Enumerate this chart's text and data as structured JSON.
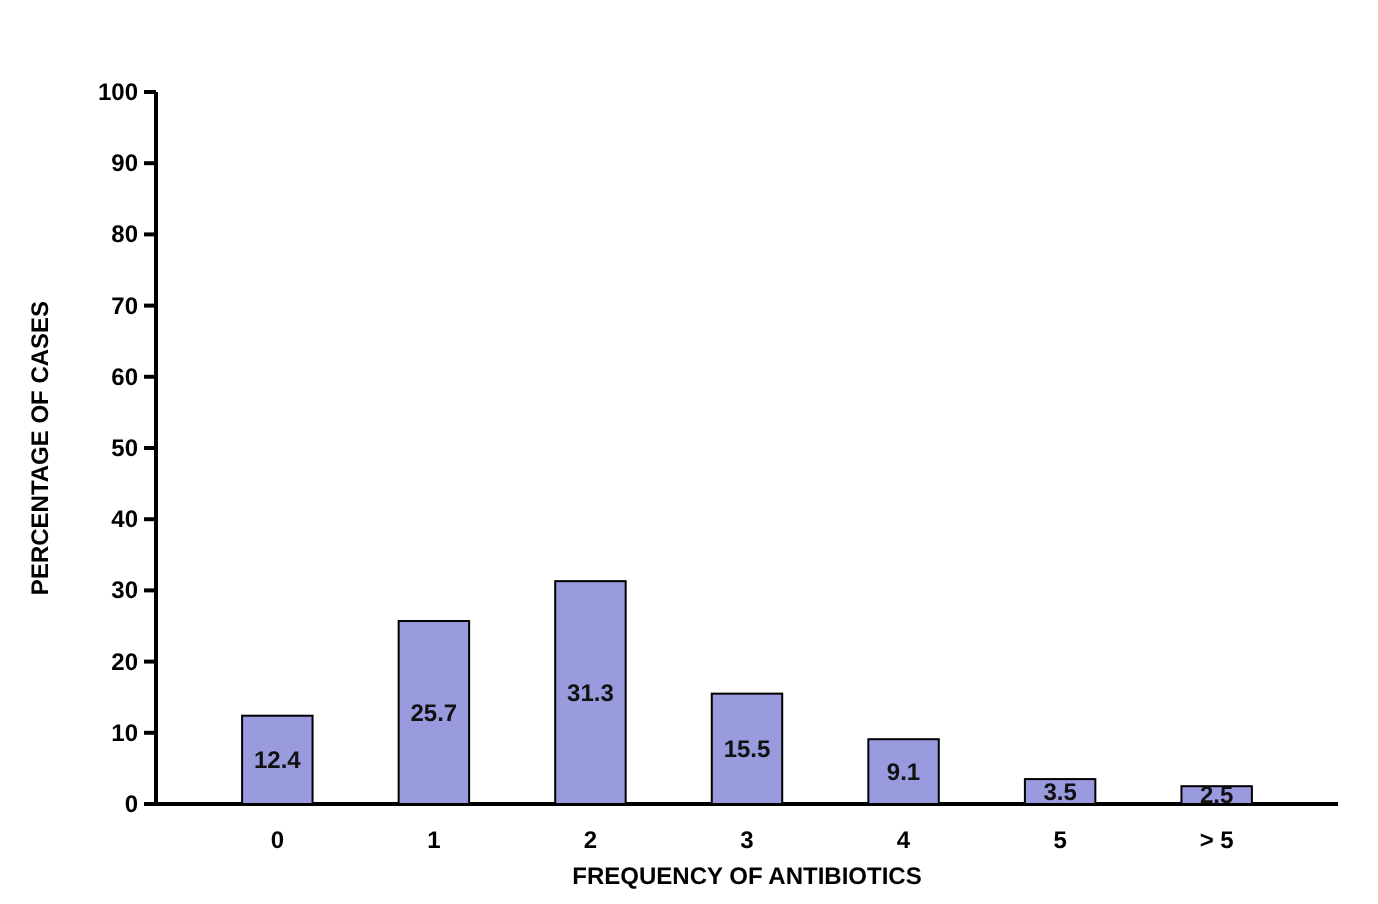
{
  "chart_data": {
    "type": "bar",
    "xlabel": "FREQUENCY OF ANTIBIOTICS",
    "ylabel": "PERCENTAGE OF CASES",
    "categories": [
      "0",
      "1",
      "2",
      "3",
      "4",
      "5",
      "> 5"
    ],
    "values": [
      12.4,
      25.7,
      31.3,
      15.5,
      9.1,
      3.5,
      2.5
    ],
    "color": "#9a9ade",
    "ylim": [
      0,
      100
    ],
    "yticks": [
      0,
      10,
      20,
      30,
      40,
      50,
      60,
      70,
      80,
      90,
      100
    ],
    "data_labels": true,
    "grid": false
  }
}
